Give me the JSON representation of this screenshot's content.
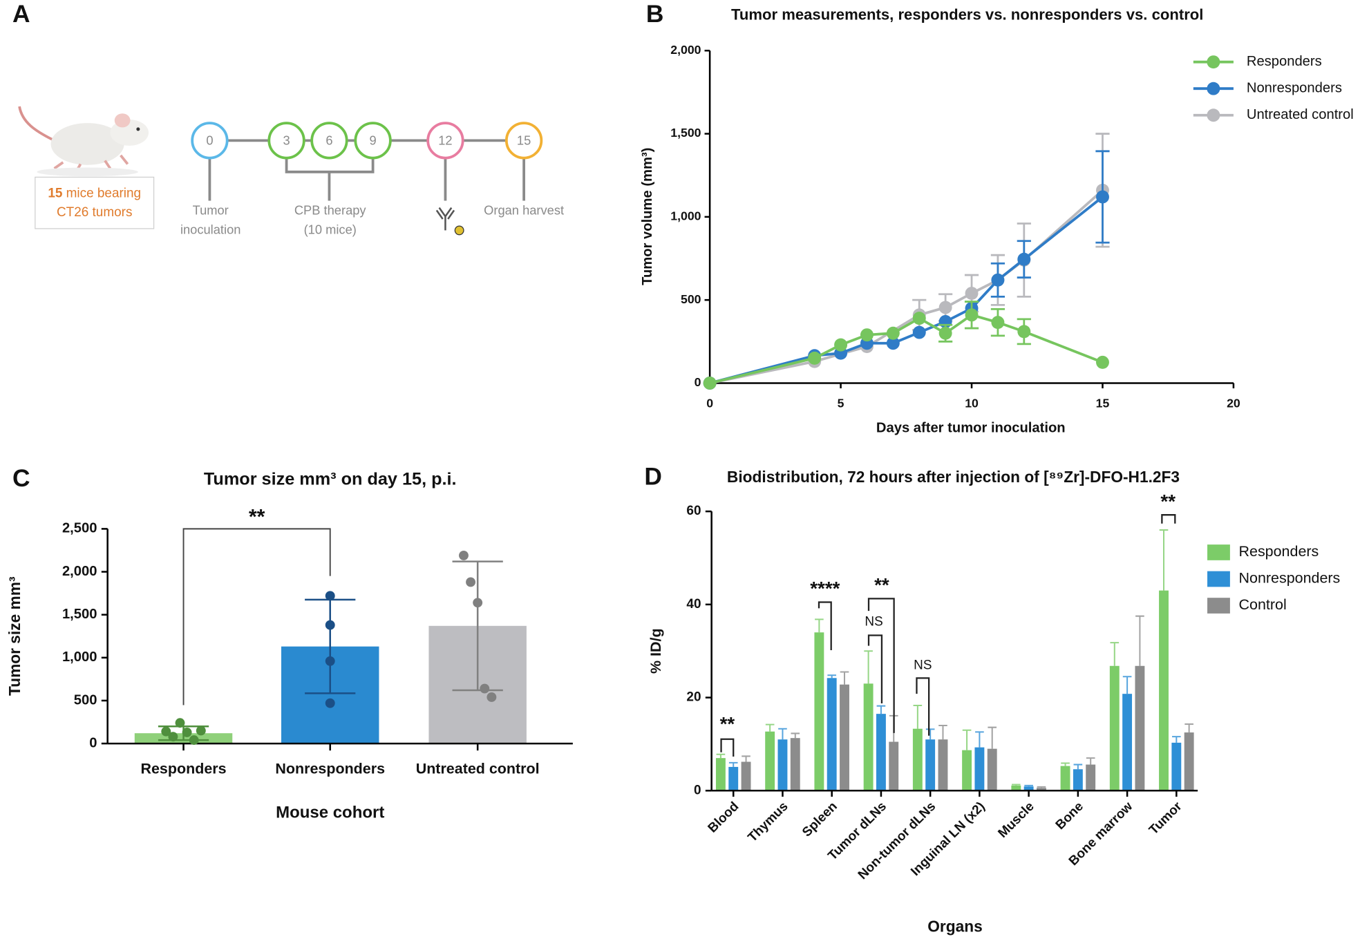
{
  "timeline": {
    "panel": "A",
    "mice_count": "15",
    "mice_text": "mice bearing",
    "mice_text2": "CT26 tumors",
    "nodes": [
      "0",
      "3",
      "6",
      "9",
      "12",
      "15"
    ],
    "captions": [
      [
        "Tumor",
        "inoculation"
      ],
      [
        "CPB therapy",
        "(10 mice)"
      ],
      [
        "Organ harvest"
      ]
    ]
  },
  "chart_data": [
    {
      "type": "line",
      "panel": "B",
      "title": "Tumor measurements, responders vs. nonresponders vs. control",
      "x_label": "Days after tumor inoculation",
      "y_label": "Tumor volume (mm³)",
      "xlim": [
        0,
        20
      ],
      "xticks": [
        0,
        5,
        10,
        15,
        20
      ],
      "ylim": [
        0,
        2000
      ],
      "yticks": [
        0,
        500,
        {
          "value": 1000,
          "label": "1,000"
        },
        {
          "value": 1500,
          "label": "1,500"
        },
        {
          "value": 2000,
          "label": "2,000"
        }
      ],
      "series": [
        {
          "name": "Untreated control",
          "color": "#b9b9bd",
          "x": [
            0,
            4,
            6,
            8,
            9,
            10,
            11,
            12,
            15
          ],
          "values": [
            0,
            130,
            220,
            410,
            455,
            540,
            620,
            740,
            1160
          ],
          "errors": [
            null,
            null,
            null,
            90,
            80,
            110,
            150,
            220,
            340
          ]
        },
        {
          "name": "Nonresponders",
          "color": "#2f7cc7",
          "x": [
            0,
            4,
            5,
            6,
            7,
            8,
            9,
            10,
            11,
            12,
            15
          ],
          "values": [
            0,
            165,
            180,
            240,
            240,
            305,
            370,
            450,
            620,
            745,
            1120
          ],
          "errors": [
            null,
            null,
            null,
            null,
            null,
            null,
            null,
            null,
            100,
            110,
            275
          ]
        },
        {
          "name": "Responders",
          "color": "#76c55e",
          "x": [
            0,
            4,
            5,
            6,
            7,
            8,
            9,
            10,
            11,
            12,
            15
          ],
          "values": [
            0,
            150,
            230,
            290,
            300,
            390,
            300,
            410,
            365,
            310,
            125
          ],
          "errors": [
            null,
            null,
            null,
            null,
            null,
            null,
            50,
            80,
            80,
            75,
            null
          ]
        }
      ],
      "legend_order": [
        2,
        1,
        0
      ]
    },
    {
      "type": "bar",
      "panel": "C",
      "title": "Tumor size mm³ on day 15, p.i.",
      "x_label": "Mouse cohort",
      "y_label": "Tumor size mm³",
      "categories": [
        "Responders",
        "Nonresponders",
        "Untreated control"
      ],
      "values": [
        120,
        1130,
        1370
      ],
      "errors": [
        80,
        545,
        750
      ],
      "colors": [
        "#8fd07a",
        "#2a8ad0",
        "#bdbdc1"
      ],
      "point_colors": [
        "#4f8f3d",
        "#1b4f86",
        "#808080"
      ],
      "points": [
        [
          140,
          80,
          240,
          130,
          40,
          150
        ],
        [
          1720,
          1380,
          960,
          470
        ],
        [
          2190,
          1880,
          1640,
          640,
          540
        ]
      ],
      "significance": "**",
      "ylim": [
        0,
        2500
      ],
      "yticks": [
        0,
        500,
        {
          "value": 1000,
          "label": "1,000"
        },
        {
          "value": 1500,
          "label": "1,500"
        },
        {
          "value": 2000,
          "label": "2,000"
        },
        {
          "value": 2500,
          "label": "2,500"
        }
      ]
    },
    {
      "type": "bar",
      "panel": "D",
      "title": "Biodistribution, 72 hours after injection of [⁸⁹Zr]-DFO-H1.2F3",
      "x_label": "Organs",
      "y_label": "% ID/g",
      "categories": [
        "Blood",
        "Thymus",
        "Spleen",
        "Tumor dLNs",
        "Non-tumor dLNs",
        "Inguinal LN (x2)",
        "Muscle",
        "Bone",
        "Bone marrow",
        "Tumor"
      ],
      "series": [
        {
          "name": "Responders",
          "color": "#7ccc68",
          "values": [
            7,
            12.7,
            34,
            23,
            13.3,
            8.7,
            1.1,
            5.3,
            26.8,
            43
          ],
          "errors": [
            0.8,
            1.5,
            2.8,
            7,
            5,
            4.3,
            0.2,
            0.6,
            5,
            13
          ]
        },
        {
          "name": "Nonresponders",
          "color": "#2e8fd6",
          "values": [
            5.1,
            11,
            24.2,
            16.5,
            11,
            9.3,
            0.9,
            4.6,
            20.8,
            10.3
          ],
          "errors": [
            0.9,
            2.3,
            0.6,
            1.7,
            2.2,
            3.3,
            0.2,
            1,
            3.7,
            1.3
          ]
        },
        {
          "name": "Control",
          "color": "#8c8c8c",
          "values": [
            6.2,
            11.3,
            22.8,
            10.5,
            11,
            9,
            0.6,
            5.6,
            26.8,
            12.5
          ],
          "errors": [
            1.2,
            1,
            2.7,
            5.6,
            3,
            4.6,
            0.2,
            1.4,
            10.7,
            1.8
          ]
        }
      ],
      "annotations": [
        "**",
        "****",
        "**",
        "NS",
        "NS",
        "**"
      ],
      "ylim": [
        0,
        60
      ],
      "yticks": [
        0,
        20,
        40,
        60
      ]
    }
  ]
}
